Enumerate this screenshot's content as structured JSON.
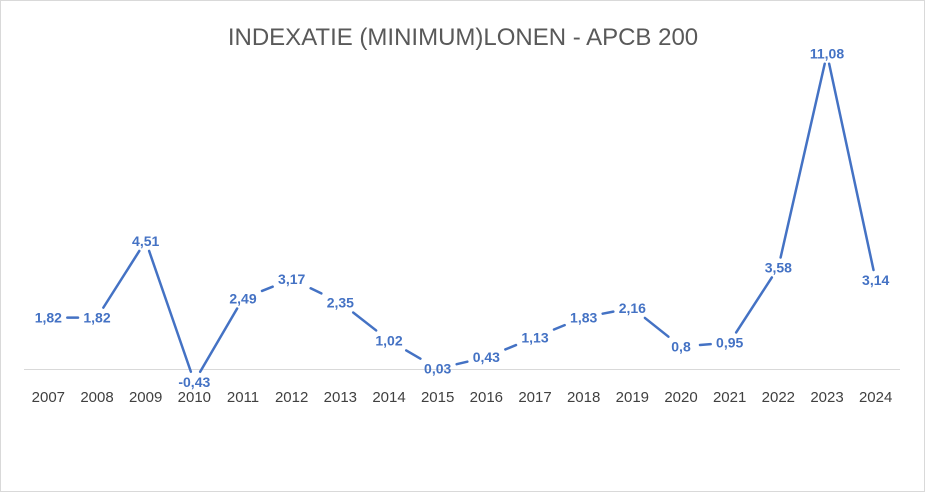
{
  "chart_data": {
    "type": "line",
    "title": "INDEXATIE (MINIMUM)LONEN - APCB 200",
    "categories": [
      "2007",
      "2008",
      "2009",
      "2010",
      "2011",
      "2012",
      "2013",
      "2014",
      "2015",
      "2016",
      "2017",
      "2018",
      "2019",
      "2020",
      "2021",
      "2022",
      "2023",
      "2024"
    ],
    "series": [
      {
        "values": [
          1.82,
          1.82,
          4.51,
          -0.43,
          2.49,
          3.17,
          2.35,
          1.02,
          0.03,
          0.43,
          1.13,
          1.83,
          2.16,
          0.8,
          0.95,
          3.58,
          11.08,
          3.14
        ],
        "labels": [
          "1,82",
          "1,82",
          "4,51",
          "-0,43",
          "2,49",
          "3,17",
          "2,35",
          "1,02",
          "0,03",
          "0,43",
          "1,13",
          "1,83",
          "2,16",
          "0,8",
          "0,95",
          "3,58",
          "11,08",
          "3,14"
        ],
        "color": "#4472c4"
      }
    ],
    "xlabel": "",
    "ylabel": "",
    "legend": "none",
    "grid": false,
    "value_axis_visible": false,
    "baseline": 0
  }
}
